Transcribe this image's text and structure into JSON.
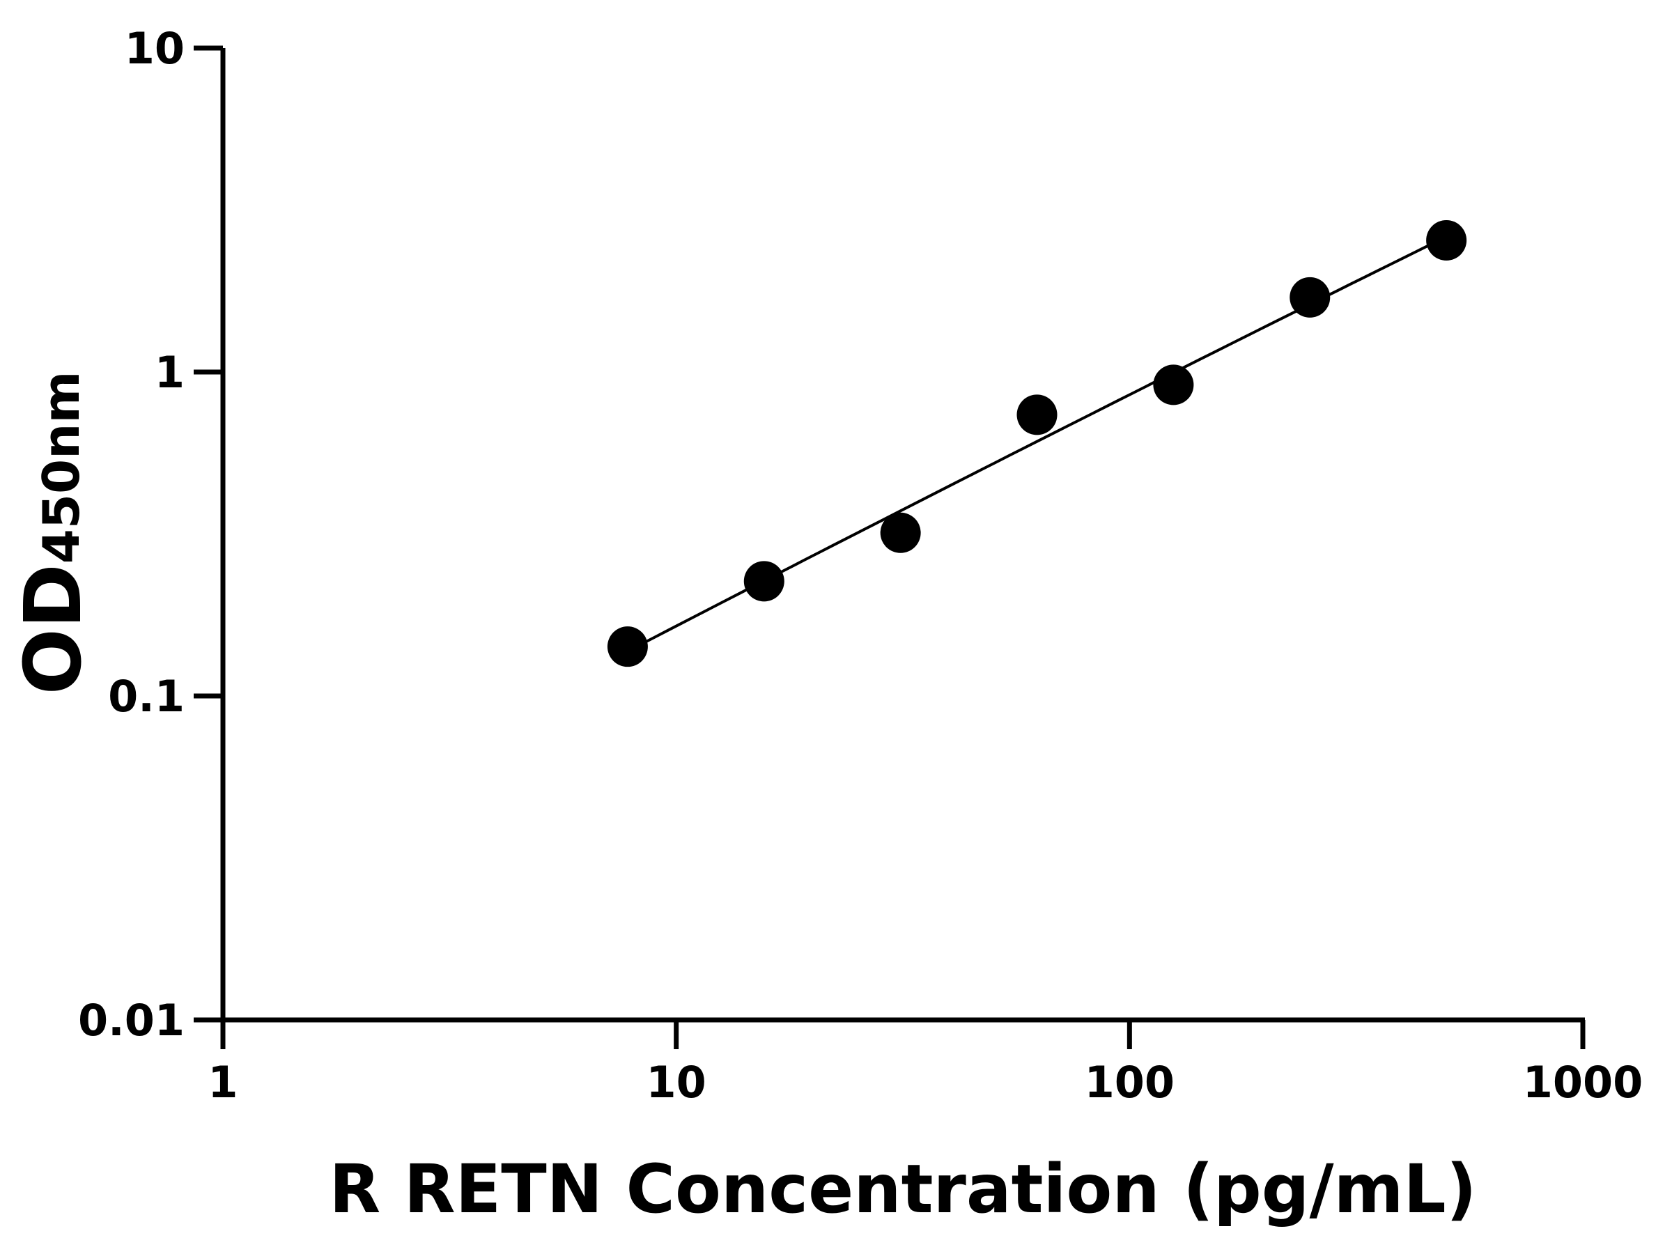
{
  "chart_data": {
    "type": "scatter",
    "title": "",
    "xlabel": "R RETN Concentration (pg/mL)",
    "ylabel_main": "OD",
    "ylabel_sub": "450nm",
    "x_scale": "log",
    "y_scale": "log",
    "xlim": [
      1,
      1000
    ],
    "ylim": [
      0.01,
      10
    ],
    "x_ticks": [
      1,
      10,
      100,
      1000
    ],
    "x_tick_labels": [
      "1",
      "10",
      "100",
      "1000"
    ],
    "y_ticks": [
      0.01,
      0.1,
      1,
      10
    ],
    "y_tick_labels": [
      "0.01",
      "0.1",
      "1",
      "10"
    ],
    "grid": false,
    "fit_line": true,
    "series": [
      {
        "x": [
          7.8125,
          15.625,
          31.25,
          62.5,
          125,
          250,
          500
        ],
        "y": [
          0.142,
          0.226,
          0.319,
          0.738,
          0.913,
          1.7,
          2.55
        ]
      }
    ],
    "colors": {
      "points": "#000000",
      "line": "#000000",
      "axes": "#000000"
    }
  }
}
